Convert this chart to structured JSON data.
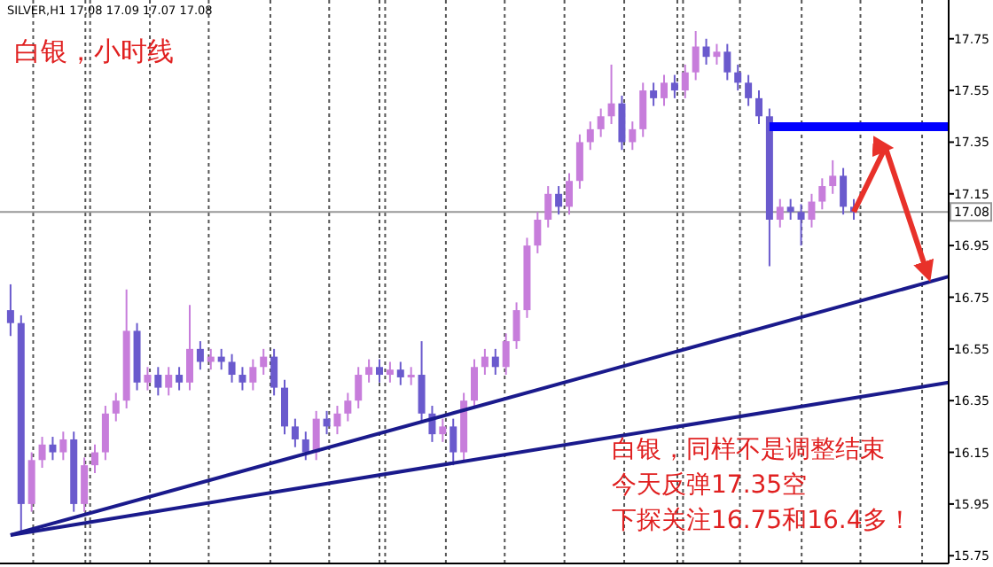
{
  "chart_data": {
    "type": "candlestick",
    "title": "白银，小时线",
    "annotations": [
      "SILVER,H1  17.08 17.09 17.07 17.08",
      "白银，同样不是调整结束",
      "今天反弹17.35空",
      "下探关注16.75和16.4多！"
    ],
    "categories": [
      null,
      null,
      null,
      null,
      null,
      null,
      null,
      null,
      null,
      null,
      null,
      null,
      null,
      null,
      null,
      null,
      null,
      null,
      null,
      null,
      null,
      null,
      null,
      null,
      null,
      null,
      null,
      null,
      null,
      null,
      null,
      null,
      null,
      null,
      null,
      null,
      null,
      null,
      null,
      null,
      null,
      null,
      null,
      null,
      null,
      null,
      null,
      null,
      null,
      null,
      null,
      null,
      null,
      null,
      null,
      null,
      null,
      null,
      null,
      null,
      null,
      null,
      null,
      null,
      null,
      null,
      null,
      null,
      null,
      null,
      null,
      null,
      null,
      null,
      null,
      null,
      null,
      null,
      null,
      null,
      null,
      null,
      null,
      null,
      null,
      null,
      null,
      null,
      null,
      null
    ],
    "ohlc": [
      [
        16.7,
        16.8,
        16.6,
        16.65
      ],
      [
        16.65,
        16.68,
        15.83,
        15.95
      ],
      [
        15.95,
        16.15,
        15.92,
        16.12
      ],
      [
        16.12,
        16.21,
        16.09,
        16.18
      ],
      [
        16.18,
        16.21,
        16.12,
        16.15
      ],
      [
        16.15,
        16.23,
        16.12,
        16.2
      ],
      [
        16.2,
        16.23,
        15.92,
        15.95
      ],
      [
        15.95,
        16.13,
        15.92,
        16.1
      ],
      [
        16.1,
        16.18,
        16.07,
        16.15
      ],
      [
        16.15,
        16.33,
        16.12,
        16.3
      ],
      [
        16.3,
        16.38,
        16.27,
        16.35
      ],
      [
        16.35,
        16.78,
        16.32,
        16.62
      ],
      [
        16.62,
        16.65,
        16.39,
        16.42
      ],
      [
        16.42,
        16.48,
        16.39,
        16.45
      ],
      [
        16.45,
        16.48,
        16.37,
        16.4
      ],
      [
        16.4,
        16.48,
        16.37,
        16.45
      ],
      [
        16.45,
        16.48,
        16.39,
        16.42
      ],
      [
        16.42,
        16.72,
        16.39,
        16.55
      ],
      [
        16.55,
        16.58,
        16.47,
        16.5
      ],
      [
        16.5,
        16.55,
        16.47,
        16.52
      ],
      [
        16.52,
        16.55,
        16.47,
        16.5
      ],
      [
        16.5,
        16.53,
        16.42,
        16.45
      ],
      [
        16.45,
        16.48,
        16.39,
        16.42
      ],
      [
        16.42,
        16.51,
        16.39,
        16.48
      ],
      [
        16.48,
        16.55,
        16.45,
        16.52
      ],
      [
        16.52,
        16.55,
        16.37,
        16.4
      ],
      [
        16.4,
        16.43,
        16.22,
        16.25
      ],
      [
        16.25,
        16.28,
        16.17,
        16.2
      ],
      [
        16.2,
        16.23,
        16.12,
        16.15
      ],
      [
        16.15,
        16.31,
        16.12,
        16.28
      ],
      [
        16.28,
        16.31,
        16.22,
        16.25
      ],
      [
        16.25,
        16.33,
        16.22,
        16.3
      ],
      [
        16.3,
        16.38,
        16.27,
        16.35
      ],
      [
        16.35,
        16.48,
        16.32,
        16.45
      ],
      [
        16.45,
        16.51,
        16.42,
        16.48
      ],
      [
        16.48,
        16.51,
        16.42,
        16.45
      ],
      [
        16.45,
        16.5,
        16.42,
        16.47
      ],
      [
        16.47,
        16.5,
        16.41,
        16.44
      ],
      [
        16.44,
        16.48,
        16.41,
        16.45
      ],
      [
        16.45,
        16.58,
        16.27,
        16.3
      ],
      [
        16.3,
        16.33,
        16.19,
        16.22
      ],
      [
        16.22,
        16.28,
        16.19,
        16.25
      ],
      [
        16.25,
        16.28,
        16.1,
        16.15
      ],
      [
        16.15,
        16.38,
        16.12,
        16.35
      ],
      [
        16.35,
        16.51,
        16.32,
        16.48
      ],
      [
        16.48,
        16.55,
        16.45,
        16.52
      ],
      [
        16.52,
        16.55,
        16.45,
        16.48
      ],
      [
        16.48,
        16.61,
        16.45,
        16.58
      ],
      [
        16.58,
        16.73,
        16.55,
        16.7
      ],
      [
        16.7,
        16.98,
        16.67,
        16.95
      ],
      [
        16.95,
        17.08,
        16.92,
        17.05
      ],
      [
        17.05,
        17.18,
        17.02,
        17.15
      ],
      [
        17.15,
        17.18,
        17.07,
        17.1
      ],
      [
        17.1,
        17.23,
        17.07,
        17.2
      ],
      [
        17.2,
        17.38,
        17.17,
        17.35
      ],
      [
        17.35,
        17.43,
        17.32,
        17.4
      ],
      [
        17.4,
        17.48,
        17.37,
        17.45
      ],
      [
        17.45,
        17.65,
        17.42,
        17.5
      ],
      [
        17.5,
        17.53,
        17.32,
        17.35
      ],
      [
        17.35,
        17.43,
        17.32,
        17.4
      ],
      [
        17.4,
        17.58,
        17.37,
        17.55
      ],
      [
        17.55,
        17.58,
        17.49,
        17.52
      ],
      [
        17.52,
        17.61,
        17.49,
        17.58
      ],
      [
        17.58,
        17.61,
        17.52,
        17.55
      ],
      [
        17.55,
        17.65,
        17.52,
        17.62
      ],
      [
        17.62,
        17.78,
        17.59,
        17.72
      ],
      [
        17.72,
        17.75,
        17.65,
        17.68
      ],
      [
        17.68,
        17.73,
        17.65,
        17.7
      ],
      [
        17.7,
        17.73,
        17.59,
        17.62
      ],
      [
        17.62,
        17.65,
        17.55,
        17.58
      ],
      [
        17.58,
        17.61,
        17.49,
        17.52
      ],
      [
        17.52,
        17.55,
        17.42,
        17.45
      ],
      [
        17.45,
        17.48,
        16.87,
        17.05
      ],
      [
        17.05,
        17.13,
        17.02,
        17.1
      ],
      [
        17.1,
        17.13,
        17.05,
        17.08
      ],
      [
        17.08,
        17.11,
        16.95,
        17.05
      ],
      [
        17.05,
        17.15,
        17.02,
        17.12
      ],
      [
        17.12,
        17.21,
        17.09,
        17.18
      ],
      [
        17.18,
        17.28,
        17.15,
        17.22
      ],
      [
        17.22,
        17.25,
        17.07,
        17.1
      ],
      [
        17.1,
        17.13,
        17.05,
        17.08
      ],
      null,
      null,
      null,
      null,
      null,
      null,
      null,
      null,
      null
    ],
    "series": [
      {
        "type": "line",
        "color": "#1a1a8c",
        "values": [
          15.83,
          null,
          null,
          null,
          null,
          null,
          null,
          null,
          null,
          null,
          null,
          null,
          null,
          null,
          null,
          null,
          null,
          null,
          null,
          null,
          null,
          null,
          null,
          null,
          null,
          null,
          null,
          null,
          null,
          null,
          null,
          null,
          null,
          null,
          null,
          null,
          null,
          null,
          null,
          null,
          null,
          null,
          null,
          null,
          null,
          null,
          null,
          null,
          null,
          null,
          null,
          null,
          null,
          null,
          null,
          null,
          null,
          null,
          null,
          null,
          null,
          null,
          null,
          null,
          null,
          null,
          null,
          null,
          null,
          null,
          null,
          null,
          null,
          null,
          null,
          null,
          null,
          null,
          null,
          null,
          null,
          null,
          null,
          null,
          null,
          null,
          null,
          null,
          null,
          16.83
        ]
      },
      {
        "type": "line",
        "color": "#1a1a8c",
        "values": [
          15.83,
          null,
          null,
          null,
          null,
          null,
          null,
          null,
          null,
          null,
          null,
          null,
          null,
          null,
          null,
          null,
          null,
          null,
          null,
          null,
          null,
          null,
          null,
          null,
          null,
          null,
          null,
          null,
          null,
          null,
          null,
          null,
          null,
          null,
          null,
          null,
          null,
          null,
          null,
          null,
          null,
          null,
          null,
          null,
          null,
          null,
          null,
          null,
          null,
          null,
          null,
          null,
          null,
          null,
          null,
          null,
          null,
          null,
          null,
          null,
          null,
          null,
          null,
          null,
          null,
          null,
          null,
          null,
          null,
          null,
          null,
          null,
          null,
          null,
          null,
          null,
          null,
          null,
          null,
          null,
          null,
          null,
          null,
          null,
          null,
          null,
          null,
          null,
          null,
          16.42
        ]
      },
      {
        "type": "line",
        "color": "#0000ff",
        "values": [
          null,
          null,
          null,
          null,
          null,
          null,
          null,
          null,
          null,
          null,
          null,
          null,
          null,
          null,
          null,
          null,
          null,
          null,
          null,
          null,
          null,
          null,
          null,
          null,
          null,
          null,
          null,
          null,
          null,
          null,
          null,
          null,
          null,
          null,
          null,
          null,
          null,
          null,
          null,
          null,
          null,
          null,
          null,
          null,
          null,
          null,
          null,
          null,
          null,
          null,
          null,
          null,
          null,
          null,
          null,
          null,
          null,
          null,
          null,
          null,
          null,
          null,
          null,
          null,
          null,
          null,
          null,
          null,
          null,
          null,
          null,
          null,
          17.41,
          null,
          null,
          null,
          null,
          null,
          null,
          null,
          null,
          null,
          null,
          null,
          null,
          null,
          null,
          null,
          null,
          17.41
        ]
      },
      {
        "type": "line",
        "color": "#e8312a",
        "values": [
          null,
          null,
          null,
          null,
          null,
          null,
          null,
          null,
          null,
          null,
          null,
          null,
          null,
          null,
          null,
          null,
          null,
          null,
          null,
          null,
          null,
          null,
          null,
          null,
          null,
          null,
          null,
          null,
          null,
          null,
          null,
          null,
          null,
          null,
          null,
          null,
          null,
          null,
          null,
          null,
          null,
          null,
          null,
          null,
          null,
          null,
          null,
          null,
          null,
          null,
          null,
          null,
          null,
          null,
          null,
          null,
          null,
          null,
          null,
          null,
          null,
          null,
          null,
          null,
          null,
          null,
          null,
          null,
          null,
          null,
          null,
          null,
          null,
          null,
          null,
          null,
          null,
          null,
          null,
          null,
          17.08,
          null,
          null,
          17.33,
          null,
          null,
          null,
          16.84,
          null,
          null
        ]
      }
    ],
    "ref_lines": [
      {
        "axis": "y",
        "value": 17.08,
        "label": "17.08",
        "color": "#999999"
      }
    ],
    "ylim": [
      15.72,
      17.9
    ],
    "yticks": [
      15.75,
      15.95,
      16.15,
      16.35,
      16.55,
      16.75,
      16.95,
      17.15,
      17.35,
      17.55,
      17.75
    ],
    "tick_labels": "y",
    "grid": "x"
  }
}
